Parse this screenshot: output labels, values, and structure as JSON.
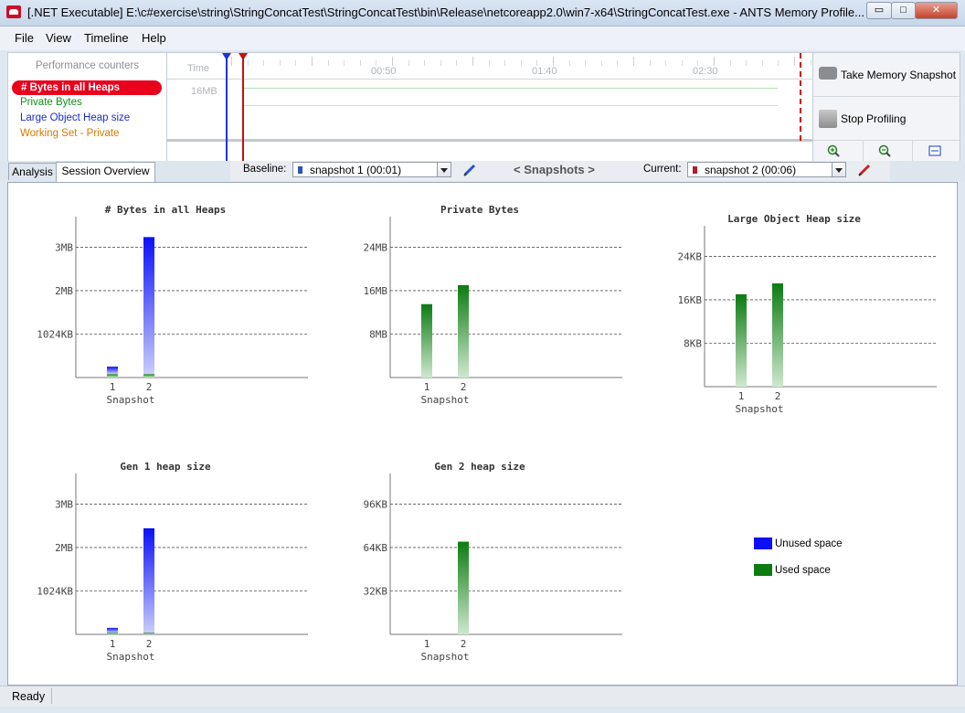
{
  "window": {
    "title": "[.NET Executable] E:\\c#exercise\\string\\StringConcatTest\\StringConcatTest\\bin\\Release\\netcoreapp2.0\\win7-x64\\StringConcatTest.exe - ANTS Memory Profile...",
    "buttons": {
      "minimize": "▭",
      "maximize": "□",
      "close": "✕"
    }
  },
  "menu": [
    "File",
    "View",
    "Timeline",
    "Help"
  ],
  "counters": {
    "title": "Performance counters",
    "items": [
      {
        "label": "# Bytes in all Heaps",
        "color": "#e8001c",
        "selected": true
      },
      {
        "label": "Private Bytes",
        "color": "#109018"
      },
      {
        "label": "Large Object Heap size",
        "color": "#1a2bd8"
      },
      {
        "label": "Working Set - Private",
        "color": "#d07a00"
      }
    ]
  },
  "timeline": {
    "time_label": "Time",
    "ticks": [
      "00:50",
      "01:40",
      "02:30"
    ],
    "y_label": "16MB"
  },
  "toolbar": {
    "take_snapshot": "Take Memory Snapshot",
    "stop_profiling": "Stop Profiling",
    "zoom_in": "zoom-in",
    "zoom_out": "zoom-out",
    "zoom_fit": "zoom-fit"
  },
  "tabs": [
    "Analysis",
    "Session Overview"
  ],
  "snapshots_bar": {
    "baseline_label": "Baseline:",
    "baseline_value": "snapshot 1 (00:01)",
    "center": "< Snapshots >",
    "current_label": "Current:",
    "current_value": "snapshot 2 (00:06)"
  },
  "legend": [
    {
      "label": "Unused space",
      "color": "#0b10f8"
    },
    {
      "label": "Used space",
      "color": "#0c7c12"
    }
  ],
  "chart_data": [
    {
      "type": "bar",
      "title": "# Bytes in all Heaps",
      "xlabel": "Snapshot",
      "categories": [
        "1",
        "2"
      ],
      "yticks": [
        "1024KB",
        "2MB",
        "3MB"
      ],
      "ylim": [
        0,
        3.7
      ],
      "unit": "MB",
      "series": [
        {
          "name": "Used space",
          "values": [
            0.08,
            0.08
          ]
        },
        {
          "name": "Unused space",
          "values": [
            0.17,
            3.15
          ]
        }
      ]
    },
    {
      "type": "bar",
      "title": "Private Bytes",
      "xlabel": "Snapshot",
      "categories": [
        "1",
        "2"
      ],
      "yticks": [
        "8MB",
        "16MB",
        "24MB"
      ],
      "ylim": [
        0,
        29.6
      ],
      "unit": "MB",
      "series": [
        {
          "name": "Used space",
          "values": [
            13.5,
            17.0
          ]
        }
      ]
    },
    {
      "type": "bar",
      "title": "Large Object Heap size",
      "xlabel": "Snapshot",
      "categories": [
        "1",
        "2"
      ],
      "yticks": [
        "8KB",
        "16KB",
        "24KB"
      ],
      "ylim": [
        0,
        29.6
      ],
      "unit": "KB",
      "series": [
        {
          "name": "Used space",
          "values": [
            17.0,
            19.0
          ]
        }
      ]
    },
    {
      "type": "bar",
      "title": "Gen 1 heap size",
      "xlabel": "Snapshot",
      "categories": [
        "1",
        "2"
      ],
      "yticks": [
        "1024KB",
        "2MB",
        "3MB"
      ],
      "ylim": [
        0,
        3.7
      ],
      "unit": "MB",
      "series": [
        {
          "name": "Used space",
          "values": [
            0.04,
            0.04
          ]
        },
        {
          "name": "Unused space",
          "values": [
            0.11,
            2.4
          ]
        }
      ]
    },
    {
      "type": "bar",
      "title": "Gen 2 heap size",
      "xlabel": "Snapshot",
      "categories": [
        "1",
        "2"
      ],
      "yticks": [
        "32KB",
        "64KB",
        "96KB"
      ],
      "ylim": [
        0,
        118
      ],
      "unit": "KB",
      "series": [
        {
          "name": "Used space",
          "values": [
            0,
            68
          ]
        }
      ]
    }
  ],
  "status": "Ready"
}
